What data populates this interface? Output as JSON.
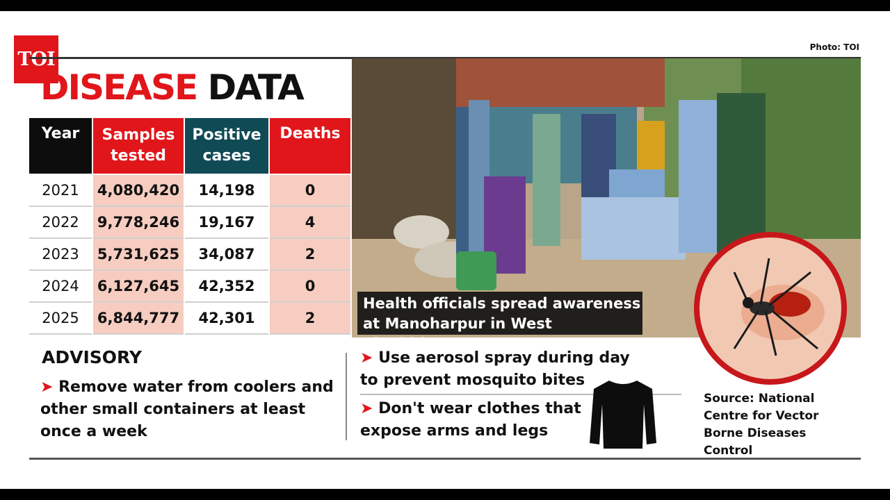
{
  "logo": {
    "text": "TOI"
  },
  "photo_credit": "Photo: TOI",
  "title": {
    "part1": "DISEASE",
    "part2": "DATA"
  },
  "table": {
    "headers": [
      "Year",
      "Samples tested",
      "Positive cases",
      "Deaths"
    ],
    "rows": [
      [
        "2021",
        "4,080,420",
        "14,198",
        "0"
      ],
      [
        "2022",
        "9,778,246",
        "19,167",
        "4"
      ],
      [
        "2023",
        "5,731,625",
        "34,087",
        "2"
      ],
      [
        "2024",
        "6,127,645",
        "42,352",
        "0"
      ],
      [
        "2025",
        "6,844,777",
        "42,301",
        "2"
      ]
    ]
  },
  "caption": {
    "line1": "Health officials spread awareness",
    "line2": "at Manoharpur in West Singhbhum"
  },
  "advisory": {
    "title": "ADVISORY",
    "arrow": "➤",
    "items": [
      "Remove water from coolers and other small containers at least once a week",
      "Use aerosol spray during day to prevent mosquito bites",
      "Don't wear clothes that expose arms and legs"
    ]
  },
  "source": "Source: National Centre for Vector Borne Diseases Control",
  "colors": {
    "accent_red": "#e0161b",
    "teal": "#0f4a55",
    "pink": "#f6cdc0"
  },
  "icons": [
    "shirt-icon",
    "mosquito-illustration"
  ]
}
